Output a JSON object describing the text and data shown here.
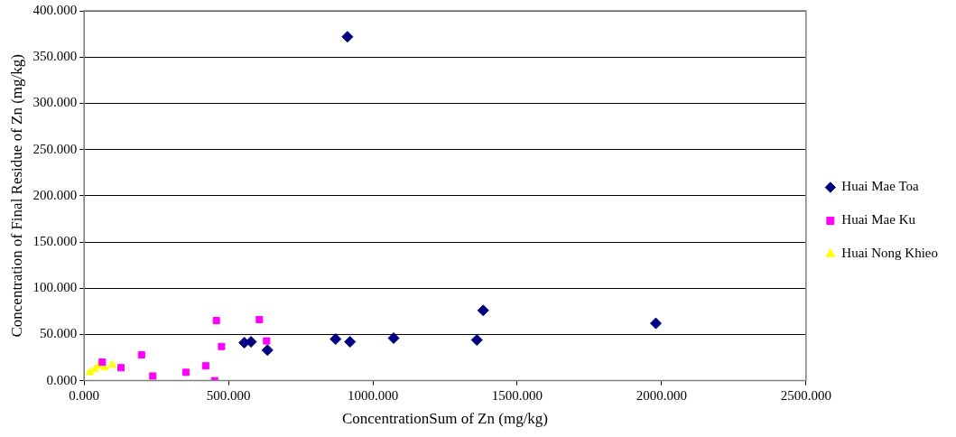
{
  "chart_data": {
    "type": "scatter",
    "xlabel": "ConcentrationSum of Zn (mg/kg)",
    "ylabel": "Concentration of Final Residue of Zn (mg/kg)",
    "series": [
      {
        "name": "Huai Mae Toa",
        "color": "#000080",
        "marker": "diamond",
        "x": [
          912,
          555,
          578,
          635,
          871,
          921,
          1072,
          1360,
          1382,
          1980
        ],
        "values": [
          372,
          41,
          42,
          33,
          45,
          42,
          46,
          44,
          76,
          62
        ]
      },
      {
        "name": "Huai Mae Ku",
        "color": "#ff00ff",
        "marker": "square",
        "x": [
          63,
          128,
          199,
          238,
          353,
          421,
          452,
          458,
          476,
          607,
          632
        ],
        "values": [
          20,
          14,
          28,
          5,
          9,
          16,
          0,
          65,
          37,
          66,
          43
        ]
      },
      {
        "name": "Huai Nong Khieo",
        "color": "#ffff00",
        "marker": "triangle",
        "x": [
          20,
          37,
          49,
          72,
          98
        ],
        "values": [
          9,
          12,
          16,
          14,
          17
        ]
      }
    ],
    "xlim": [
      0,
      2500
    ],
    "xticks": [
      {
        "value": 0,
        "label": "0.000"
      },
      {
        "value": 500,
        "label": "500.000"
      },
      {
        "value": 1000,
        "label": "1000.000"
      },
      {
        "value": 1500,
        "label": "1500.000"
      },
      {
        "value": 2000,
        "label": "2000.000"
      },
      {
        "value": 2500,
        "label": "2500.000"
      }
    ],
    "ylim": [
      0,
      400
    ],
    "yticks": [
      {
        "value": 0,
        "label": "0.000"
      },
      {
        "value": 50,
        "label": "50.000"
      },
      {
        "value": 100,
        "label": "100.000"
      },
      {
        "value": 150,
        "label": "150.000"
      },
      {
        "value": 200,
        "label": "200.000"
      },
      {
        "value": 250,
        "label": "250.000"
      },
      {
        "value": 300,
        "label": "300.000"
      },
      {
        "value": 350,
        "label": "350.000"
      },
      {
        "value": 400,
        "label": "400.000"
      }
    ],
    "grid": "y",
    "legend": "right"
  }
}
